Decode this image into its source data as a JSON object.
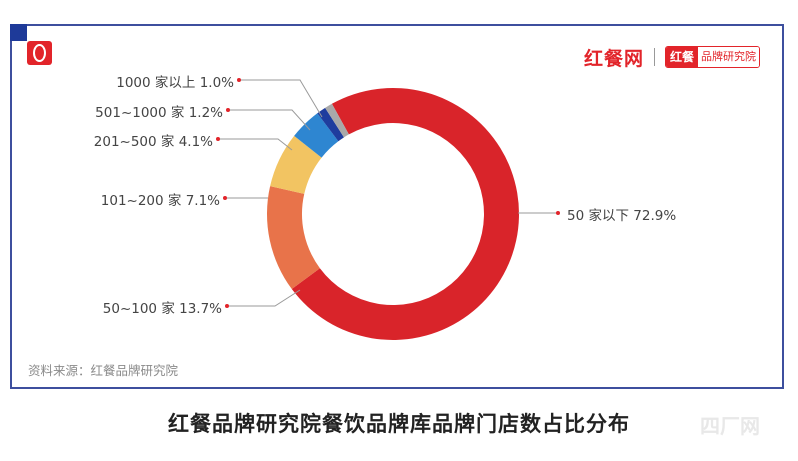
{
  "header": {
    "brand_name": "红餐网",
    "badge_left": "红餐",
    "badge_right": "品牌研究院"
  },
  "labels": [
    {
      "text": "1000 家以上 1.0%"
    },
    {
      "text": "501~1000 家 1.2%"
    },
    {
      "text": "201~500 家 4.1%"
    },
    {
      "text": "101~200 家 7.1%"
    },
    {
      "text": "50~100 家 13.7%"
    },
    {
      "text": "50 家以下 72.9%"
    }
  ],
  "source": "资料来源：红餐品牌研究院",
  "caption": "红餐品牌研究院餐饮品牌库品牌门店数占比分布",
  "watermark": "四厂网",
  "colors": {
    "frame": "#3d4f9e",
    "accent": "#e2242a"
  },
  "chart_data": {
    "type": "pie",
    "subtype": "donut",
    "title": "红餐品牌研究院餐饮品牌库品牌门店数占比分布",
    "categories": [
      "50 家以下",
      "50~100 家",
      "101~200 家",
      "201~500 家",
      "501~1000 家",
      "1000 家以上"
    ],
    "values": [
      72.9,
      13.7,
      7.1,
      4.1,
      1.2,
      1.0
    ],
    "unit": "%",
    "colors": [
      "#d9242a",
      "#e8734a",
      "#f2c462",
      "#2e86d1",
      "#1f3d9e",
      "#a9a9a9"
    ],
    "source": "资料来源：红餐品牌研究院",
    "legend_position": "callout labels"
  }
}
